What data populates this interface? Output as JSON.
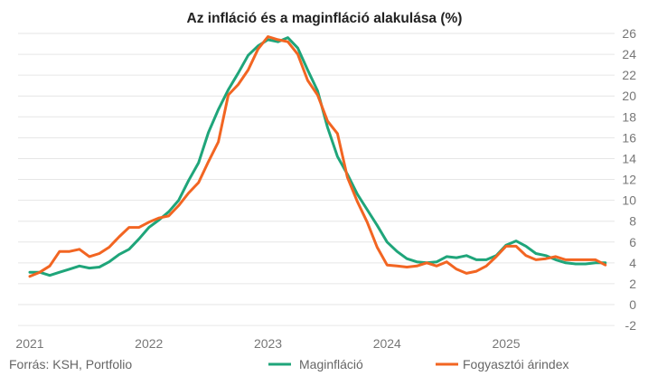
{
  "chart_data": {
    "type": "line",
    "title": "Az infláció és a maginfláció alakulása (%)",
    "source": "Forrás: KSH, Portfolio",
    "ylim": [
      -4,
      26
    ],
    "y_ticks": [
      26,
      24,
      22,
      20,
      18,
      16,
      14,
      12,
      10,
      8,
      6,
      4,
      2,
      0,
      -2
    ],
    "x_ticks": [
      "2021",
      "2022",
      "2023",
      "2024",
      "2025"
    ],
    "grid": "horizontal",
    "legend": "bottom",
    "series": [
      {
        "name": "Maginfláció",
        "color": "#1fa57a",
        "values": [
          3.1,
          3.1,
          2.8,
          3.1,
          3.4,
          3.7,
          3.5,
          3.6,
          4.1,
          4.8,
          5.3,
          6.3,
          7.4,
          8.1,
          8.9,
          10.0,
          11.9,
          13.6,
          16.5,
          18.7,
          20.6,
          22.2,
          23.9,
          24.8,
          25.4,
          25.2,
          25.6,
          24.6,
          22.5,
          20.5,
          17.0,
          14.2,
          12.5,
          10.6,
          9.1,
          7.6,
          6.0,
          5.1,
          4.4,
          4.1,
          4.0,
          4.1,
          4.6,
          4.5,
          4.7,
          4.3,
          4.3,
          4.7,
          5.7,
          6.1,
          5.6,
          4.9,
          4.7,
          4.3,
          4.0,
          3.9,
          3.9,
          4.0,
          4.0
        ]
      },
      {
        "name": "Fogyasztói árindex",
        "color": "#f26522",
        "values": [
          2.7,
          3.1,
          3.7,
          5.1,
          5.1,
          5.3,
          4.6,
          4.9,
          5.5,
          6.5,
          7.4,
          7.4,
          7.9,
          8.3,
          8.5,
          9.5,
          10.7,
          11.7,
          13.7,
          15.6,
          20.1,
          21.1,
          22.5,
          24.5,
          25.7,
          25.4,
          25.2,
          24.0,
          21.5,
          20.1,
          17.6,
          16.4,
          12.2,
          9.9,
          7.9,
          5.5,
          3.8,
          3.7,
          3.6,
          3.7,
          4.0,
          3.7,
          4.1,
          3.4,
          3.0,
          3.2,
          3.7,
          4.6,
          5.6,
          5.6,
          4.7,
          4.3,
          4.4,
          4.6,
          4.3,
          4.3,
          4.3,
          4.3,
          3.8
        ]
      }
    ]
  }
}
